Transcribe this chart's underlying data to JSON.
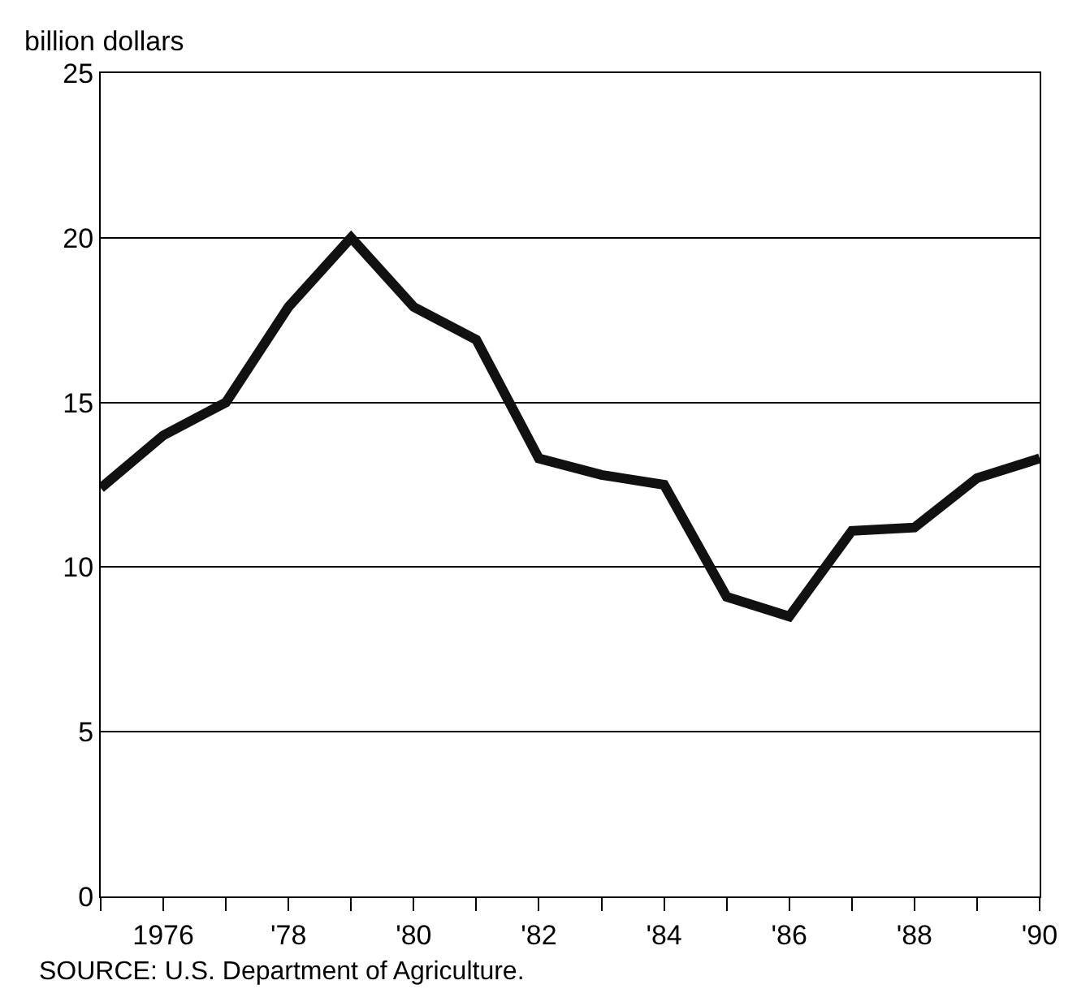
{
  "chart_data": {
    "type": "line",
    "ylabel": "billion dollars",
    "annotations": [
      "SOURCE: U.S. Department of Agriculture."
    ],
    "x": [
      1975,
      1976,
      1977,
      1978,
      1979,
      1980,
      1981,
      1982,
      1983,
      1984,
      1985,
      1986,
      1987,
      1988,
      1989,
      1990
    ],
    "series": [
      {
        "color": "#111111",
        "values": [
          12.4,
          14.0,
          15.0,
          17.9,
          20.0,
          17.9,
          16.9,
          13.3,
          12.8,
          12.5,
          9.1,
          8.5,
          11.1,
          11.2,
          12.7,
          13.3
        ]
      }
    ],
    "xlim": [
      1975,
      1990
    ],
    "xticks": [
      {
        "value": 1975,
        "label": null
      },
      {
        "value": 1976,
        "label": "1976"
      },
      {
        "value": 1977,
        "label": null
      },
      {
        "value": 1978,
        "label": "'78"
      },
      {
        "value": 1979,
        "label": null
      },
      {
        "value": 1980,
        "label": "'80"
      },
      {
        "value": 1981,
        "label": null
      },
      {
        "value": 1982,
        "label": "'82"
      },
      {
        "value": 1983,
        "label": null
      },
      {
        "value": 1984,
        "label": "'84"
      },
      {
        "value": 1985,
        "label": null
      },
      {
        "value": 1986,
        "label": "'86"
      },
      {
        "value": 1987,
        "label": null
      },
      {
        "value": 1988,
        "label": "'88"
      },
      {
        "value": 1989,
        "label": null
      },
      {
        "value": 1990,
        "label": "'90"
      }
    ],
    "ylim": [
      0,
      25
    ],
    "yticks": [
      0,
      5,
      10,
      15,
      20,
      25
    ],
    "grid": "y",
    "legend": false,
    "marker": "none",
    "line_style": "solid"
  }
}
